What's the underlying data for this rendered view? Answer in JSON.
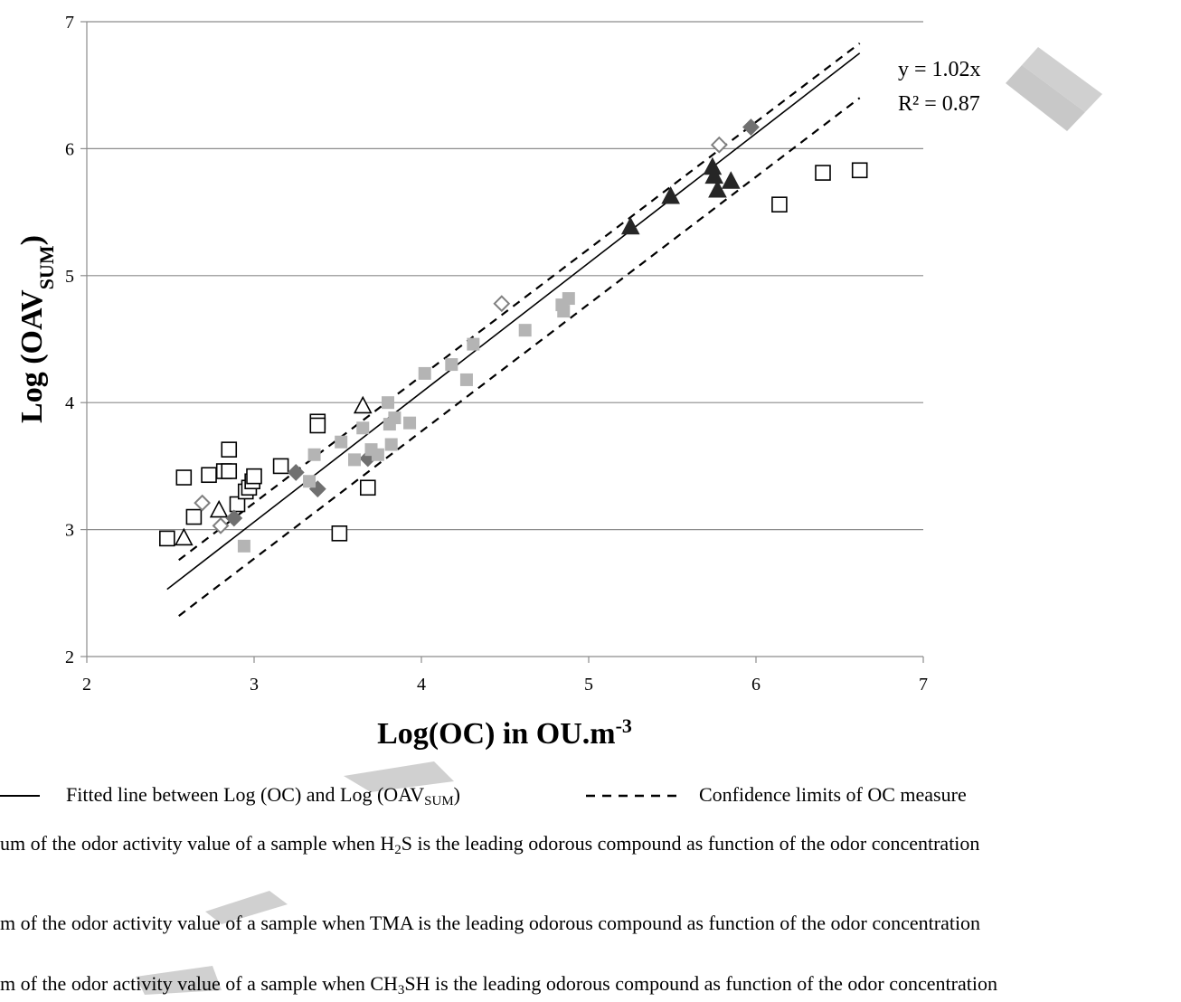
{
  "chart_data": {
    "type": "scatter",
    "xlabel": "Log(OC) in OU.m",
    "xlabel_sup": "-3",
    "ylabel": "Log (OAV",
    "ylabel_sub": "SUM",
    "ylabel_close": ")",
    "xlim": [
      2,
      7
    ],
    "ylim": [
      2,
      7
    ],
    "xticks": [
      "2",
      "3",
      "4",
      "5",
      "6",
      "7"
    ],
    "yticks": [
      "2",
      "3",
      "4",
      "5",
      "6",
      "7"
    ],
    "grid": "horizontal",
    "equation": "y = 1.02x",
    "r2": "R² = 0.87",
    "fit": {
      "slope": 1.02,
      "x_range": [
        2.48,
        6.62
      ]
    },
    "confidence_upper": {
      "x": [
        2.55,
        6.62
      ],
      "y": [
        2.76,
        6.83
      ]
    },
    "confidence_lower": {
      "x": [
        2.55,
        6.62
      ],
      "y": [
        2.32,
        6.4
      ]
    },
    "series": [
      {
        "marker": "open-square",
        "color": "#000000",
        "points": [
          [
            2.48,
            2.93
          ],
          [
            2.58,
            3.41
          ],
          [
            2.64,
            3.1
          ],
          [
            2.73,
            3.43
          ],
          [
            2.82,
            3.46
          ],
          [
            2.85,
            3.63
          ],
          [
            2.85,
            3.46
          ],
          [
            2.9,
            3.2
          ],
          [
            2.95,
            3.3
          ],
          [
            2.97,
            3.33
          ],
          [
            2.99,
            3.38
          ],
          [
            3.0,
            3.42
          ],
          [
            3.16,
            3.5
          ],
          [
            3.38,
            3.85
          ],
          [
            3.38,
            3.82
          ],
          [
            3.51,
            2.97
          ],
          [
            3.68,
            3.33
          ],
          [
            6.14,
            5.56
          ],
          [
            6.4,
            5.81
          ],
          [
            6.62,
            5.83
          ]
        ]
      },
      {
        "marker": "open-triangle",
        "color": "#000000",
        "points": [
          [
            2.58,
            2.93
          ],
          [
            2.79,
            3.15
          ],
          [
            3.65,
            3.97
          ]
        ]
      },
      {
        "marker": "filled-triangle",
        "color": "#262626",
        "points": [
          [
            5.25,
            5.38
          ],
          [
            5.49,
            5.62
          ],
          [
            5.74,
            5.85
          ],
          [
            5.75,
            5.78
          ],
          [
            5.77,
            5.67
          ],
          [
            5.85,
            5.74
          ]
        ]
      },
      {
        "marker": "open-diamond",
        "color": "#808080",
        "points": [
          [
            2.69,
            3.21
          ],
          [
            2.8,
            3.03
          ],
          [
            4.48,
            4.78
          ],
          [
            5.78,
            6.03
          ]
        ]
      },
      {
        "marker": "filled-diamond",
        "color": "#707070",
        "points": [
          [
            2.88,
            3.09
          ],
          [
            3.25,
            3.45
          ],
          [
            3.38,
            3.32
          ],
          [
            3.68,
            3.56
          ],
          [
            5.97,
            6.17
          ]
        ]
      },
      {
        "marker": "filled-square",
        "color": "#b4b4b4",
        "points": [
          [
            2.94,
            2.87
          ],
          [
            3.33,
            3.38
          ],
          [
            3.36,
            3.59
          ],
          [
            3.52,
            3.69
          ],
          [
            3.6,
            3.55
          ],
          [
            3.65,
            3.8
          ],
          [
            3.7,
            3.63
          ],
          [
            3.74,
            3.59
          ],
          [
            3.8,
            4.0
          ],
          [
            3.81,
            3.83
          ],
          [
            3.82,
            3.67
          ],
          [
            3.84,
            3.88
          ],
          [
            3.93,
            3.84
          ],
          [
            4.02,
            4.23
          ],
          [
            4.18,
            4.3
          ],
          [
            4.27,
            4.18
          ],
          [
            4.31,
            4.46
          ],
          [
            4.62,
            4.57
          ],
          [
            4.84,
            4.77
          ],
          [
            4.85,
            4.72
          ],
          [
            4.88,
            4.82
          ]
        ]
      }
    ]
  },
  "legend": {
    "fit_label": "Fitted line between Log (OC) and Log (OAV",
    "fit_label_sub": "SUM",
    "fit_label_close": ")",
    "conf_label": "Confidence limits of OC measure",
    "h2s_a": "um of the odor activity value of a sample when H",
    "h2s_sub": "2",
    "h2s_b": "S is the leading odorous compound as function of the odor concentration",
    "tma": "m of the odor activity value of a sample when TMA is the leading odorous compound as function of the odor concentration",
    "ch3sh_a": "m of the odor activity value of a sample when CH",
    "ch3sh_sub": "3",
    "ch3sh_b": "SH is the leading odorous compound as function of the odor concentration"
  }
}
